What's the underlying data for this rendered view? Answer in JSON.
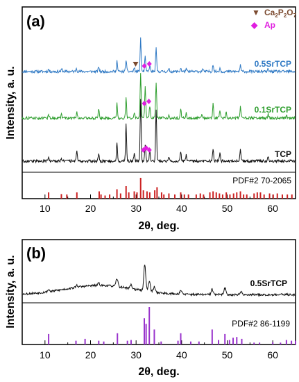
{
  "chart_data": [
    {
      "type": "line",
      "panel_label": "(a)",
      "xlabel": "2θ, deg.",
      "ylabel": "Intensity, a. u.",
      "xlim": [
        5,
        65
      ],
      "x_ticks": [
        10,
        20,
        30,
        40,
        50,
        60
      ],
      "legend": [
        {
          "symbol": "▼",
          "main": "Ca",
          "sub1": "2",
          "mid": "P",
          "sub2": "2",
          "end": "O",
          "sub3": "7",
          "color": "#7b4a2f"
        },
        {
          "symbol": "◆",
          "text": "Ap",
          "color": "#e01ee0"
        }
      ],
      "series": [
        {
          "name": "0.5SrTCP",
          "color": "#2f79c4",
          "peaks": [
            [
              10.8,
              2
            ],
            [
              13.7,
              2
            ],
            [
              16.9,
              3
            ],
            [
              21.8,
              4
            ],
            [
              25.8,
              9
            ],
            [
              27.8,
              10
            ],
            [
              29.6,
              3
            ],
            [
              31.0,
              27
            ],
            [
              32.0,
              12
            ],
            [
              33.0,
              5
            ],
            [
              34.4,
              19
            ],
            [
              37.2,
              2
            ],
            [
              39.8,
              3
            ],
            [
              41.0,
              2
            ],
            [
              44.6,
              2
            ],
            [
              46.9,
              6
            ],
            [
              48.4,
              3
            ],
            [
              52.9,
              5
            ],
            [
              59.0,
              2
            ]
          ]
        },
        {
          "name": "0.1SrTCP",
          "color": "#2e9e2e",
          "peaks": [
            [
              10.8,
              3
            ],
            [
              13.6,
              3
            ],
            [
              17.0,
              5
            ],
            [
              21.8,
              7
            ],
            [
              25.8,
              12
            ],
            [
              27.8,
              16
            ],
            [
              29.6,
              4
            ],
            [
              31.0,
              36
            ],
            [
              32.0,
              26
            ],
            [
              33.0,
              10
            ],
            [
              34.4,
              29
            ],
            [
              37.2,
              3
            ],
            [
              39.8,
              8
            ],
            [
              41.0,
              4
            ],
            [
              44.5,
              3
            ],
            [
              46.9,
              12
            ],
            [
              48.4,
              6
            ],
            [
              49.8,
              5
            ],
            [
              52.9,
              9
            ],
            [
              59.0,
              3
            ],
            [
              63.0,
              3
            ]
          ]
        },
        {
          "name": "TCP",
          "color": "#111111",
          "peaks": [
            [
              10.8,
              3
            ],
            [
              13.6,
              3
            ],
            [
              17.0,
              9
            ],
            [
              21.8,
              7
            ],
            [
              25.8,
              16
            ],
            [
              27.8,
              30
            ],
            [
              29.6,
              6
            ],
            [
              31.0,
              50
            ],
            [
              32.0,
              14
            ],
            [
              33.0,
              10
            ],
            [
              34.4,
              43
            ],
            [
              37.2,
              4
            ],
            [
              39.8,
              8
            ],
            [
              41.0,
              5
            ],
            [
              46.9,
              10
            ],
            [
              48.4,
              7
            ],
            [
              52.9,
              9
            ],
            [
              59.0,
              4
            ]
          ]
        }
      ],
      "markers": [
        {
          "series": "0.5SrTCP",
          "type": "Ca2P2O7",
          "x": 29.9
        },
        {
          "series": "0.5SrTCP",
          "type": "Ap",
          "x": 31.8
        },
        {
          "series": "0.5SrTCP",
          "type": "Ap",
          "x": 32.9
        },
        {
          "series": "0.1SrTCP",
          "type": "Ap",
          "x": 31.8
        },
        {
          "series": "0.1SrTCP",
          "type": "Ap",
          "x": 32.8
        },
        {
          "series": "TCP",
          "type": "Ap",
          "x": 31.6
        },
        {
          "series": "TCP",
          "type": "Ap",
          "x": 32.2
        },
        {
          "series": "TCP",
          "type": "Ap",
          "x": 32.9
        }
      ],
      "reference": {
        "name": "PDF#2 70-2065",
        "color": "#cc2222",
        "lines": [
          [
            10.8,
            0.3
          ],
          [
            13.6,
            0.22
          ],
          [
            14.8,
            0.2
          ],
          [
            17.0,
            0.3
          ],
          [
            21.9,
            0.35
          ],
          [
            22.3,
            0.2
          ],
          [
            23.2,
            0.15
          ],
          [
            24.2,
            0.2
          ],
          [
            25.8,
            0.45
          ],
          [
            26.6,
            0.25
          ],
          [
            27.8,
            0.6
          ],
          [
            28.4,
            0.3
          ],
          [
            29.6,
            0.35
          ],
          [
            30.2,
            0.3
          ],
          [
            31.0,
            1.0
          ],
          [
            31.6,
            0.4
          ],
          [
            32.4,
            0.35
          ],
          [
            33.0,
            0.3
          ],
          [
            34.1,
            0.4
          ],
          [
            34.6,
            0.55
          ],
          [
            35.6,
            0.3
          ],
          [
            36.1,
            0.2
          ],
          [
            37.2,
            0.25
          ],
          [
            38.5,
            0.2
          ],
          [
            39.8,
            0.3
          ],
          [
            40.6,
            0.2
          ],
          [
            41.5,
            0.2
          ],
          [
            43.2,
            0.2
          ],
          [
            44.1,
            0.25
          ],
          [
            44.8,
            0.2
          ],
          [
            46.2,
            0.3
          ],
          [
            46.9,
            0.35
          ],
          [
            47.6,
            0.3
          ],
          [
            48.3,
            0.25
          ],
          [
            49.0,
            0.2
          ],
          [
            49.8,
            0.3
          ],
          [
            50.6,
            0.2
          ],
          [
            51.4,
            0.25
          ],
          [
            52.1,
            0.3
          ],
          [
            52.9,
            0.35
          ],
          [
            53.6,
            0.2
          ],
          [
            54.3,
            0.2
          ],
          [
            55.9,
            0.25
          ],
          [
            56.6,
            0.3
          ],
          [
            57.3,
            0.3
          ],
          [
            58.1,
            0.2
          ],
          [
            59.3,
            0.25
          ],
          [
            60.1,
            0.2
          ],
          [
            61.0,
            0.25
          ],
          [
            62.1,
            0.2
          ],
          [
            63.2,
            0.2
          ],
          [
            64.2,
            0.2
          ]
        ]
      }
    },
    {
      "type": "line",
      "panel_label": "(b)",
      "xlabel": "2θ, deg.",
      "ylabel": "Intensity, a. u.",
      "xlim": [
        5,
        65
      ],
      "x_ticks": [
        10,
        20,
        30,
        40,
        50,
        60
      ],
      "series": [
        {
          "name": "0.5SrTCP",
          "color": "#111111",
          "peaks": [
            [
              10.8,
              1.5
            ],
            [
              17.0,
              1.5
            ],
            [
              21.8,
              1.5
            ],
            [
              25.8,
              6
            ],
            [
              28.9,
              3
            ],
            [
              31.9,
              20
            ],
            [
              32.9,
              8
            ],
            [
              34.0,
              4
            ],
            [
              39.8,
              3
            ],
            [
              46.7,
              4
            ],
            [
              49.5,
              5
            ],
            [
              53.1,
              2
            ]
          ]
        }
      ],
      "reference": {
        "name": "PDF#2 86-1199",
        "color": "#9933cc",
        "lines": [
          [
            10.8,
            0.28
          ],
          [
            16.8,
            0.1
          ],
          [
            18.8,
            0.15
          ],
          [
            21.8,
            0.1
          ],
          [
            22.9,
            0.08
          ],
          [
            25.9,
            0.3
          ],
          [
            28.1,
            0.1
          ],
          [
            28.9,
            0.12
          ],
          [
            31.8,
            0.7
          ],
          [
            32.2,
            0.55
          ],
          [
            32.9,
            1.0
          ],
          [
            34.0,
            0.4
          ],
          [
            35.5,
            0.08
          ],
          [
            39.2,
            0.1
          ],
          [
            39.8,
            0.3
          ],
          [
            42.0,
            0.08
          ],
          [
            43.8,
            0.08
          ],
          [
            46.7,
            0.4
          ],
          [
            48.1,
            0.12
          ],
          [
            49.5,
            0.28
          ],
          [
            50.5,
            0.12
          ],
          [
            51.3,
            0.18
          ],
          [
            52.1,
            0.2
          ],
          [
            53.2,
            0.15
          ],
          [
            55.9,
            0.05
          ],
          [
            57.1,
            0.05
          ],
          [
            60.0,
            0.06
          ],
          [
            61.7,
            0.05
          ],
          [
            63.0,
            0.12
          ],
          [
            64.1,
            0.1
          ],
          [
            65.0,
            0.1
          ]
        ]
      }
    }
  ]
}
